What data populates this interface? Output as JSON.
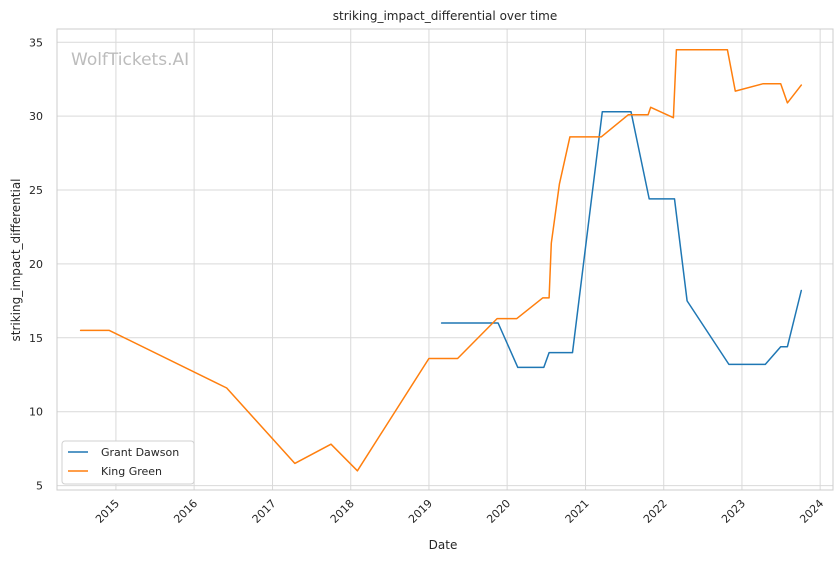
{
  "chart_data": {
    "type": "line",
    "title": "striking_impact_differential over time",
    "xlabel": "Date",
    "ylabel": "striking_impact_differential",
    "watermark": "WolfTickets.AI",
    "x_ticks": [
      "2015",
      "2016",
      "2017",
      "2018",
      "2019",
      "2020",
      "2021",
      "2022",
      "2023",
      "2024"
    ],
    "y_ticks": [
      "5",
      "10",
      "15",
      "20",
      "25",
      "30",
      "35"
    ],
    "xlim": [
      "2014-04-01",
      "2024-03-01"
    ],
    "ylim": [
      4.7,
      35.9
    ],
    "grid": true,
    "legend_position": "lower-left",
    "series": [
      {
        "name": "Grant Dawson",
        "color": "#1f77b4",
        "points": [
          [
            "2019-03-01",
            16.0
          ],
          [
            "2019-11-20",
            16.0
          ],
          [
            "2020-02-20",
            13.0
          ],
          [
            "2020-06-20",
            13.0
          ],
          [
            "2020-07-15",
            14.0
          ],
          [
            "2020-11-01",
            14.0
          ],
          [
            "2021-03-20",
            30.3
          ],
          [
            "2021-08-01",
            30.3
          ],
          [
            "2021-10-25",
            24.4
          ],
          [
            "2022-02-20",
            24.4
          ],
          [
            "2022-04-20",
            17.5
          ],
          [
            "2022-11-01",
            13.2
          ],
          [
            "2023-04-20",
            13.2
          ],
          [
            "2023-07-01",
            14.4
          ],
          [
            "2023-08-01",
            14.4
          ],
          [
            "2023-10-05",
            18.2
          ]
        ]
      },
      {
        "name": "King Green",
        "color": "#ff7f0e",
        "points": [
          [
            "2014-07-20",
            15.5
          ],
          [
            "2014-12-01",
            15.5
          ],
          [
            "2016-06-01",
            11.6
          ],
          [
            "2017-04-15",
            6.5
          ],
          [
            "2017-10-01",
            7.8
          ],
          [
            "2018-02-01",
            6.0
          ],
          [
            "2019-01-01",
            13.6
          ],
          [
            "2019-05-15",
            13.6
          ],
          [
            "2019-11-15",
            16.3
          ],
          [
            "2020-02-15",
            16.3
          ],
          [
            "2020-06-15",
            17.7
          ],
          [
            "2020-07-15",
            17.7
          ],
          [
            "2020-07-25",
            21.4
          ],
          [
            "2020-09-01",
            25.4
          ],
          [
            "2020-10-20",
            28.6
          ],
          [
            "2021-03-15",
            28.6
          ],
          [
            "2021-07-20",
            30.1
          ],
          [
            "2021-10-20",
            30.1
          ],
          [
            "2021-11-01",
            30.6
          ],
          [
            "2022-02-15",
            29.9
          ],
          [
            "2022-03-01",
            34.5
          ],
          [
            "2022-10-25",
            34.5
          ],
          [
            "2022-12-01",
            31.7
          ],
          [
            "2023-04-10",
            32.2
          ],
          [
            "2023-07-01",
            32.2
          ],
          [
            "2023-08-01",
            30.9
          ],
          [
            "2023-10-05",
            32.1
          ]
        ]
      }
    ]
  }
}
